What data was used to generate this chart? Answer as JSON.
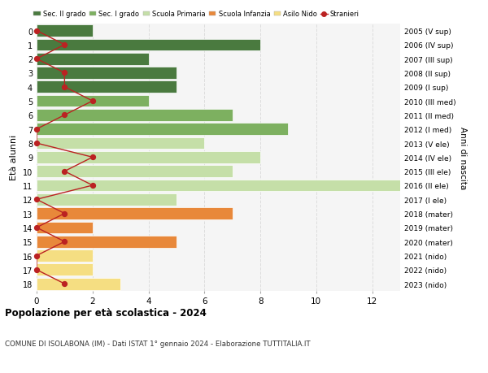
{
  "ages": [
    18,
    17,
    16,
    15,
    14,
    13,
    12,
    11,
    10,
    9,
    8,
    7,
    6,
    5,
    4,
    3,
    2,
    1,
    0
  ],
  "anni_nascita": [
    "2005 (V sup)",
    "2006 (IV sup)",
    "2007 (III sup)",
    "2008 (II sup)",
    "2009 (I sup)",
    "2010 (III med)",
    "2011 (II med)",
    "2012 (I med)",
    "2013 (V ele)",
    "2014 (IV ele)",
    "2015 (III ele)",
    "2016 (II ele)",
    "2017 (I ele)",
    "2018 (mater)",
    "2019 (mater)",
    "2020 (mater)",
    "2021 (nido)",
    "2022 (nido)",
    "2023 (nido)"
  ],
  "bar_values": [
    2,
    8,
    4,
    5,
    5,
    4,
    7,
    9,
    6,
    8,
    7,
    13,
    5,
    7,
    2,
    5,
    2,
    2,
    3
  ],
  "bar_colors": [
    "#4a7a3f",
    "#4a7a3f",
    "#4a7a3f",
    "#4a7a3f",
    "#4a7a3f",
    "#7db060",
    "#7db060",
    "#7db060",
    "#c5dfa8",
    "#c5dfa8",
    "#c5dfa8",
    "#c5dfa8",
    "#c5dfa8",
    "#e8883a",
    "#e8883a",
    "#e8883a",
    "#f5de82",
    "#f5de82",
    "#f5de82"
  ],
  "stranieri_values": [
    0,
    1,
    0,
    1,
    1,
    2,
    1,
    0,
    0,
    2,
    1,
    2,
    0,
    1,
    0,
    1,
    0,
    0,
    1
  ],
  "title_main": "Popolazione per età scolastica - 2024",
  "title_sub": "COMUNE DI ISOLABONA (IM) - Dati ISTAT 1° gennaio 2024 - Elaborazione TUTTITALIA.IT",
  "ylabel_left": "Età alunni",
  "ylabel_right": "Anni di nascita",
  "xlim": [
    0,
    13
  ],
  "xticks": [
    0,
    2,
    4,
    6,
    8,
    10,
    12
  ],
  "legend_labels": [
    "Sec. II grado",
    "Sec. I grado",
    "Scuola Primaria",
    "Scuola Infanzia",
    "Asilo Nido",
    "Stranieri"
  ],
  "legend_colors": [
    "#4a7a3f",
    "#7db060",
    "#c5dfa8",
    "#e8883a",
    "#f5de82",
    "#bb2222"
  ],
  "stranieri_color": "#bb2222",
  "grid_color": "#dddddd",
  "bg_color": "#ffffff",
  "bar_bg_color": "#f5f5f5"
}
